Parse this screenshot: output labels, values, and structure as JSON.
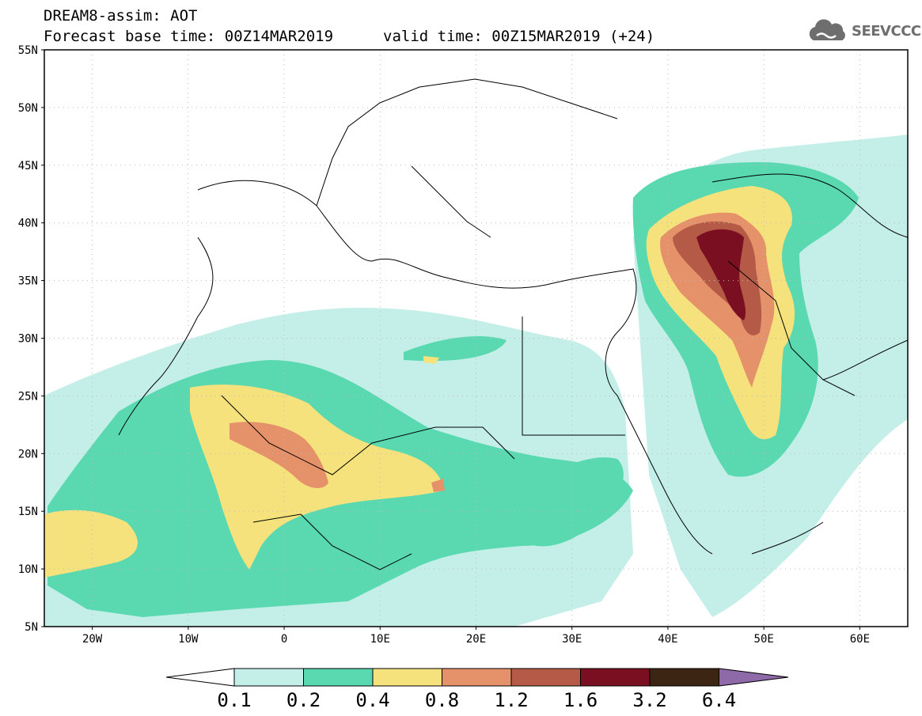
{
  "header": {
    "line1": "DREAM8-assim: AOT",
    "line2_base": "Forecast base time: 00Z14MAR2019",
    "line2_valid": "valid time: 00Z15MAR2019 (+24)"
  },
  "logo": {
    "text": "SEEVCCC",
    "icon": "cloud-icon"
  },
  "map": {
    "lon_range": [
      -25,
      65
    ],
    "lat_range": [
      5,
      55
    ],
    "lat_ticks": [
      {
        "v": 55,
        "label": "55N"
      },
      {
        "v": 50,
        "label": "50N"
      },
      {
        "v": 45,
        "label": "45N"
      },
      {
        "v": 40,
        "label": "40N"
      },
      {
        "v": 35,
        "label": "35N"
      },
      {
        "v": 30,
        "label": "30N"
      },
      {
        "v": 25,
        "label": "25N"
      },
      {
        "v": 20,
        "label": "20N"
      },
      {
        "v": 15,
        "label": "15N"
      },
      {
        "v": 10,
        "label": "10N"
      },
      {
        "v": 5,
        "label": "5N"
      }
    ],
    "lon_ticks": [
      {
        "v": -20,
        "label": "20W"
      },
      {
        "v": -10,
        "label": "10W"
      },
      {
        "v": 0,
        "label": "0"
      },
      {
        "v": 10,
        "label": "10E"
      },
      {
        "v": 20,
        "label": "20E"
      },
      {
        "v": 30,
        "label": "30E"
      },
      {
        "v": 40,
        "label": "40E"
      },
      {
        "v": 50,
        "label": "50E"
      },
      {
        "v": 60,
        "label": "60E"
      }
    ],
    "grid": "dotted"
  },
  "colorbar": {
    "labels": [
      "0.1",
      "0.2",
      "0.4",
      "0.8",
      "1.2",
      "1.6",
      "3.2",
      "6.4"
    ],
    "colors": [
      "#ffffff",
      "#c4efe9",
      "#5ad9b0",
      "#f5e27c",
      "#e5916a",
      "#b45a46",
      "#7a0f22",
      "#3d2513",
      "#8f6aa8"
    ]
  }
}
